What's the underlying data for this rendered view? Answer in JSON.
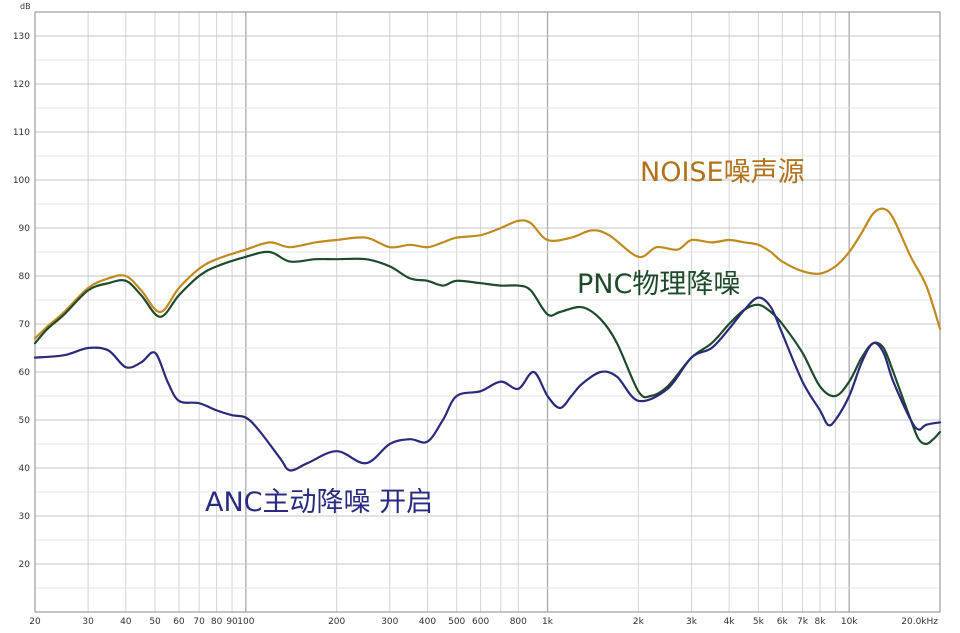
{
  "chart_data": {
    "type": "line",
    "x_scale": "log",
    "xlim": [
      20,
      20000
    ],
    "ylim": [
      10,
      135
    ],
    "grid": true,
    "y_unit": "dB",
    "x_ticks": [
      20,
      30,
      40,
      50,
      60,
      70,
      80,
      90,
      100,
      200,
      300,
      400,
      500,
      600,
      700,
      800,
      1000,
      2000,
      3000,
      4000,
      5000,
      6000,
      7000,
      8000,
      9000,
      10000,
      20000
    ],
    "x_tick_labels": [
      "20",
      "30",
      "40",
      "50",
      "60",
      "70",
      "80",
      "90",
      "100",
      "200",
      "300",
      "400",
      "500",
      "600",
      "",
      "800",
      "1k",
      "2k",
      "3k",
      "4k",
      "5k",
      "6k",
      "7k",
      "8k",
      "",
      "10k",
      "20.0kHz"
    ],
    "y_ticks": [
      20,
      30,
      40,
      50,
      60,
      70,
      80,
      90,
      100,
      110,
      120,
      130
    ],
    "y_tick_labels": [
      "20",
      "30",
      "40",
      "50",
      "60",
      "70",
      "80",
      "90",
      "100",
      "110",
      "120",
      "130"
    ],
    "series": [
      {
        "name": "NOISE噪声源",
        "color": "#c08a1e",
        "points": [
          [
            20,
            67
          ],
          [
            22,
            69.5
          ],
          [
            25,
            72.5
          ],
          [
            30,
            77.5
          ],
          [
            35,
            79.5
          ],
          [
            40,
            80
          ],
          [
            45,
            77
          ],
          [
            52,
            72.5
          ],
          [
            60,
            77.5
          ],
          [
            70,
            81.5
          ],
          [
            80,
            83.5
          ],
          [
            100,
            85.5
          ],
          [
            120,
            87
          ],
          [
            140,
            86
          ],
          [
            170,
            87
          ],
          [
            200,
            87.5
          ],
          [
            250,
            88
          ],
          [
            300,
            86
          ],
          [
            350,
            86.5
          ],
          [
            400,
            86
          ],
          [
            450,
            87
          ],
          [
            500,
            88
          ],
          [
            600,
            88.5
          ],
          [
            700,
            90
          ],
          [
            800,
            91.5
          ],
          [
            880,
            91
          ],
          [
            1000,
            87.5
          ],
          [
            1200,
            88
          ],
          [
            1400,
            89.5
          ],
          [
            1600,
            88.5
          ],
          [
            2000,
            84
          ],
          [
            2300,
            86
          ],
          [
            2700,
            85.5
          ],
          [
            3000,
            87.5
          ],
          [
            3500,
            87
          ],
          [
            4000,
            87.5
          ],
          [
            4500,
            87
          ],
          [
            5000,
            86.5
          ],
          [
            5500,
            85
          ],
          [
            6000,
            83
          ],
          [
            7000,
            81
          ],
          [
            8000,
            80.5
          ],
          [
            9000,
            82
          ],
          [
            10000,
            85
          ],
          [
            11000,
            89
          ],
          [
            12000,
            93
          ],
          [
            13000,
            94
          ],
          [
            14000,
            92
          ],
          [
            16000,
            84
          ],
          [
            18000,
            78
          ],
          [
            20000,
            69
          ]
        ]
      },
      {
        "name": "PNC物理降噪",
        "color": "#1f4a2c",
        "points": [
          [
            20,
            66
          ],
          [
            22,
            69
          ],
          [
            25,
            72
          ],
          [
            30,
            77
          ],
          [
            35,
            78.5
          ],
          [
            40,
            79
          ],
          [
            45,
            76
          ],
          [
            52,
            71.5
          ],
          [
            60,
            76
          ],
          [
            70,
            80
          ],
          [
            80,
            82
          ],
          [
            100,
            84
          ],
          [
            120,
            85
          ],
          [
            140,
            83
          ],
          [
            170,
            83.5
          ],
          [
            200,
            83.5
          ],
          [
            250,
            83.5
          ],
          [
            300,
            82
          ],
          [
            350,
            79.5
          ],
          [
            400,
            79
          ],
          [
            450,
            78
          ],
          [
            500,
            79
          ],
          [
            600,
            78.5
          ],
          [
            700,
            78
          ],
          [
            800,
            78
          ],
          [
            880,
            77
          ],
          [
            1000,
            72
          ],
          [
            1100,
            72.5
          ],
          [
            1300,
            73.5
          ],
          [
            1500,
            71
          ],
          [
            1700,
            66
          ],
          [
            2000,
            56
          ],
          [
            2200,
            55
          ],
          [
            2500,
            57
          ],
          [
            3000,
            63
          ],
          [
            3500,
            66
          ],
          [
            4000,
            70
          ],
          [
            4500,
            73
          ],
          [
            5000,
            74
          ],
          [
            5500,
            72.5
          ],
          [
            6000,
            70
          ],
          [
            7000,
            64
          ],
          [
            8000,
            57
          ],
          [
            9000,
            55
          ],
          [
            10000,
            58
          ],
          [
            11000,
            63
          ],
          [
            12000,
            66
          ],
          [
            13000,
            65
          ],
          [
            14000,
            60
          ],
          [
            16000,
            50
          ],
          [
            17000,
            46
          ],
          [
            18000,
            45
          ],
          [
            19000,
            46
          ],
          [
            20000,
            47.5
          ]
        ]
      },
      {
        "name": "ANC主动降噪  开启",
        "color": "#2a2a7a",
        "points": [
          [
            20,
            63
          ],
          [
            25,
            63.5
          ],
          [
            30,
            65
          ],
          [
            35,
            64.5
          ],
          [
            40,
            61
          ],
          [
            45,
            62
          ],
          [
            50,
            64
          ],
          [
            55,
            58
          ],
          [
            60,
            54
          ],
          [
            70,
            53.5
          ],
          [
            80,
            52
          ],
          [
            90,
            51
          ],
          [
            100,
            50.5
          ],
          [
            110,
            48
          ],
          [
            130,
            42
          ],
          [
            140,
            39.5
          ],
          [
            160,
            41
          ],
          [
            200,
            43.5
          ],
          [
            250,
            41
          ],
          [
            300,
            45
          ],
          [
            350,
            46
          ],
          [
            400,
            45.5
          ],
          [
            450,
            50
          ],
          [
            500,
            55
          ],
          [
            600,
            56
          ],
          [
            700,
            58
          ],
          [
            800,
            56.5
          ],
          [
            900,
            60
          ],
          [
            1000,
            55
          ],
          [
            1100,
            52.5
          ],
          [
            1200,
            55
          ],
          [
            1300,
            57.5
          ],
          [
            1500,
            60
          ],
          [
            1700,
            59
          ],
          [
            2000,
            54
          ],
          [
            2500,
            56.5
          ],
          [
            3000,
            63
          ],
          [
            3500,
            65
          ],
          [
            4000,
            69
          ],
          [
            4500,
            73
          ],
          [
            5000,
            75.5
          ],
          [
            5500,
            73.5
          ],
          [
            6000,
            68
          ],
          [
            7000,
            58
          ],
          [
            8000,
            52
          ],
          [
            8500,
            49
          ],
          [
            9000,
            50
          ],
          [
            10000,
            55
          ],
          [
            11000,
            62
          ],
          [
            12000,
            66
          ],
          [
            13000,
            64
          ],
          [
            14000,
            58
          ],
          [
            16000,
            50
          ],
          [
            17000,
            48
          ],
          [
            18000,
            49
          ],
          [
            20000,
            49.5
          ]
        ]
      }
    ],
    "annotations": [
      {
        "text": "NOISE噪声源",
        "color": "#b0721a"
      },
      {
        "text": "PNC物理降噪",
        "color": "#1e4a2a"
      },
      {
        "text": "ANC主动降噪  开启",
        "color": "#2a2a80"
      }
    ]
  }
}
